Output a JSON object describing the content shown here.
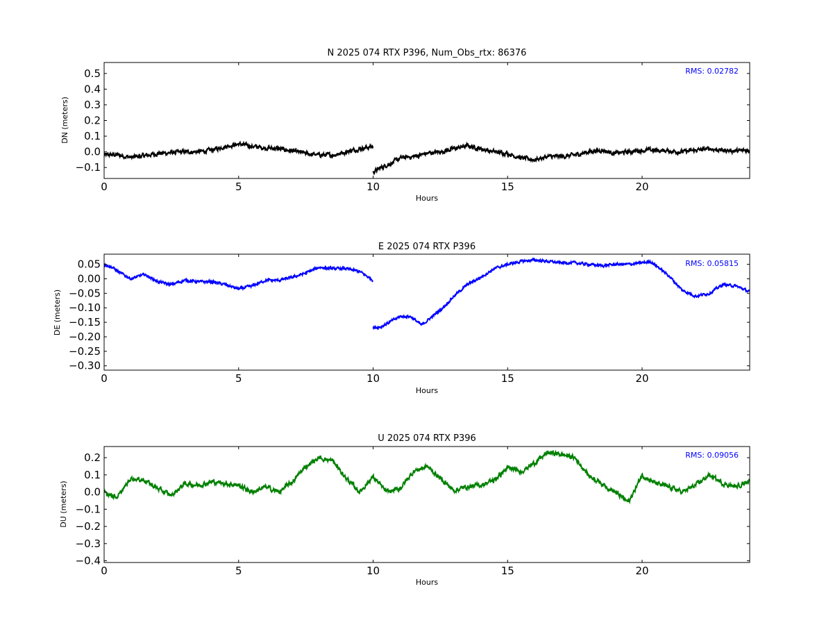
{
  "chart_data": [
    {
      "type": "line",
      "title": "N 2025 074 RTX  P396, Num_Obs_rtx: 86376",
      "xlabel": "Hours",
      "ylabel": "DN (meters)",
      "xlim": [
        0,
        24
      ],
      "ylim": [
        -0.17,
        0.57
      ],
      "xticks": [
        "0",
        "5",
        "10",
        "15",
        "20"
      ],
      "yticks": [
        "0.5",
        "0.4",
        "0.3",
        "0.2",
        "0.1",
        "0.0",
        "−0.1"
      ],
      "annotation": "RMS:  0.02782",
      "color": "#000000",
      "noise": 0.012,
      "series": [
        {
          "x": [
            0,
            0.5,
            1,
            1.5,
            2,
            2.5,
            3,
            3.5,
            4,
            4.5,
            5,
            5.5,
            6,
            6.5,
            7,
            7.5,
            8,
            8.5,
            9,
            9.5,
            10
          ],
          "y": [
            -0.02,
            -0.02,
            -0.035,
            -0.025,
            -0.01,
            -0.005,
            0.0,
            0.0,
            0.01,
            0.035,
            0.05,
            0.035,
            0.025,
            0.02,
            0.005,
            -0.01,
            -0.02,
            -0.02,
            0.0,
            0.02,
            0.035
          ]
        },
        {
          "x": [
            10,
            10.3,
            10.7,
            11,
            11.5,
            12,
            12.5,
            13,
            13.5,
            14,
            14.5,
            15,
            15.5,
            16,
            16.5,
            17,
            17.5,
            18,
            18.5,
            19,
            19.5,
            20,
            20.5,
            21,
            21.5,
            22,
            22.5,
            23,
            23.5,
            24
          ],
          "y": [
            -0.13,
            -0.1,
            -0.07,
            -0.04,
            -0.03,
            -0.01,
            0.0,
            0.02,
            0.04,
            0.02,
            0.0,
            -0.01,
            -0.04,
            -0.05,
            -0.03,
            -0.03,
            -0.02,
            0.0,
            0.01,
            -0.01,
            0.0,
            0.01,
            0.01,
            0.005,
            0.0,
            0.01,
            0.02,
            0.01,
            0.005,
            0.01
          ]
        }
      ]
    },
    {
      "type": "line",
      "title": "E 2025 074 RTX  P396",
      "xlabel": "Hours",
      "ylabel": "DE (meters)",
      "xlim": [
        0,
        24
      ],
      "ylim": [
        -0.315,
        0.085
      ],
      "xticks": [
        "0",
        "5",
        "10",
        "15",
        "20"
      ],
      "yticks": [
        "0.05",
        "0.00",
        "−0.05",
        "−0.10",
        "−0.15",
        "−0.20",
        "−0.25",
        "−0.30"
      ],
      "annotation": "RMS:  0.05815",
      "color": "#0000ff",
      "noise": 0.004,
      "series": [
        {
          "x": [
            0,
            0.3,
            0.6,
            1,
            1.5,
            2,
            2.5,
            3,
            3.5,
            4,
            4.5,
            5,
            5.5,
            6,
            6.5,
            7,
            7.5,
            8,
            8.5,
            9,
            9.5,
            10
          ],
          "y": [
            0.05,
            0.04,
            0.02,
            0.0,
            0.015,
            -0.01,
            -0.02,
            -0.005,
            -0.01,
            -0.01,
            -0.02,
            -0.035,
            -0.025,
            -0.005,
            -0.005,
            0.005,
            0.02,
            0.04,
            0.035,
            0.035,
            0.025,
            -0.005
          ]
        },
        {
          "x": [
            10,
            10.3,
            10.6,
            11,
            11.4,
            11.8,
            12.2,
            12.6,
            13,
            13.5,
            14,
            14.5,
            15,
            15.5,
            16,
            16.5,
            17,
            17.5,
            18,
            18.5,
            19,
            19.5,
            20,
            20.3,
            20.6,
            21,
            21.5,
            22,
            22.5,
            23,
            23.5,
            24
          ],
          "y": [
            -0.17,
            -0.165,
            -0.15,
            -0.13,
            -0.13,
            -0.16,
            -0.13,
            -0.1,
            -0.06,
            -0.02,
            0.005,
            0.035,
            0.05,
            0.06,
            0.065,
            0.06,
            0.055,
            0.055,
            0.05,
            0.045,
            0.05,
            0.05,
            0.055,
            0.06,
            0.04,
            0.01,
            -0.04,
            -0.06,
            -0.05,
            -0.02,
            -0.025,
            -0.045
          ]
        }
      ]
    },
    {
      "type": "line",
      "title": "U 2025 074 RTX  P396",
      "xlabel": "Hours",
      "ylabel": "DU (meters)",
      "xlim": [
        0,
        24
      ],
      "ylim": [
        -0.41,
        0.265
      ],
      "xticks": [
        "0",
        "5",
        "10",
        "15",
        "20"
      ],
      "yticks": [
        "0.2",
        "0.1",
        "0.0",
        "−0.1",
        "−0.2",
        "−0.3",
        "−0.4"
      ],
      "annotation": "RMS:  0.09056",
      "color": "#008000",
      "noise": 0.012,
      "series": [
        {
          "x": [
            0,
            0.5,
            1,
            1.5,
            2,
            2.5,
            3,
            3.5,
            4,
            4.5,
            5,
            5.5,
            6,
            6.5,
            7,
            7.5,
            8,
            8.5,
            9,
            9.5,
            10,
            10.5,
            11,
            11.5,
            12,
            12.5,
            13,
            13.5,
            14,
            14.5,
            15,
            15.5,
            16,
            16.5,
            17,
            17.5,
            18,
            18.5,
            19,
            19.5,
            20,
            20.5,
            21,
            21.5,
            22,
            22.5,
            23,
            23.5,
            24
          ],
          "y": [
            0.0,
            -0.03,
            0.08,
            0.07,
            0.02,
            -0.02,
            0.05,
            0.04,
            0.06,
            0.05,
            0.04,
            0.0,
            0.03,
            0.0,
            0.06,
            0.15,
            0.2,
            0.18,
            0.08,
            0.0,
            0.09,
            0.0,
            0.02,
            0.12,
            0.15,
            0.08,
            0.01,
            0.03,
            0.04,
            0.07,
            0.14,
            0.12,
            0.17,
            0.23,
            0.22,
            0.2,
            0.1,
            0.05,
            0.0,
            -0.06,
            0.1,
            0.05,
            0.03,
            0.0,
            0.04,
            0.1,
            0.05,
            0.03,
            0.07
          ]
        }
      ]
    }
  ]
}
